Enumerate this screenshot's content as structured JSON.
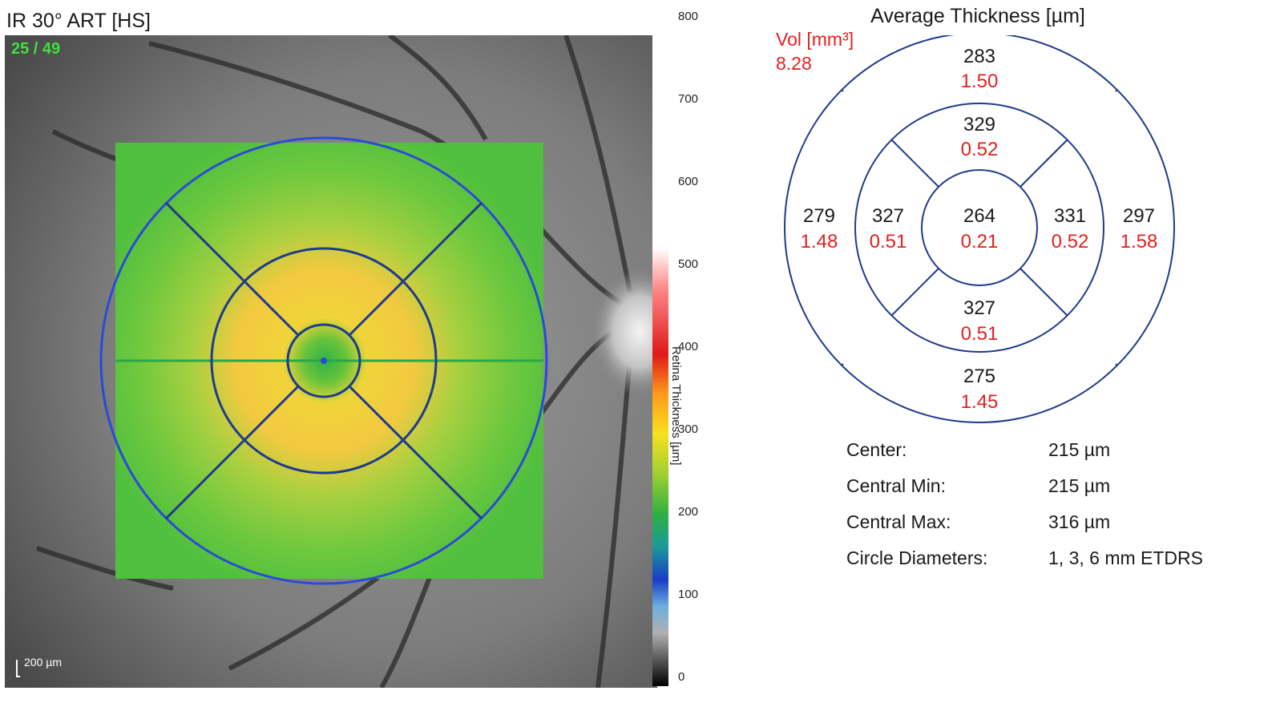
{
  "image_title": "IR 30° ART [HS]",
  "frame_counter": "25 / 49",
  "scale_bar_label": "200 µm",
  "colorbar": {
    "title": "Retina Thickness [µm]",
    "ticks": [
      "800",
      "700",
      "600",
      "500",
      "400",
      "300",
      "200",
      "100",
      "0"
    ]
  },
  "chart_title": "Average Thickness [µm]",
  "volume": {
    "label": "Vol [mm³]",
    "value": "8.28"
  },
  "sectors": [
    {
      "name": "superior-outer",
      "thickness": "283",
      "volume": "1.50"
    },
    {
      "name": "superior-inner",
      "thickness": "329",
      "volume": "0.52"
    },
    {
      "name": "temporal-outer",
      "thickness": "279",
      "volume": "1.48"
    },
    {
      "name": "temporal-inner",
      "thickness": "327",
      "volume": "0.51"
    },
    {
      "name": "center",
      "thickness": "264",
      "volume": "0.21"
    },
    {
      "name": "nasal-inner",
      "thickness": "331",
      "volume": "0.52"
    },
    {
      "name": "nasal-outer",
      "thickness": "297",
      "volume": "1.58"
    },
    {
      "name": "inferior-inner",
      "thickness": "327",
      "volume": "0.51"
    },
    {
      "name": "inferior-outer",
      "thickness": "275",
      "volume": "1.45"
    }
  ],
  "stats": [
    {
      "label": "Center:",
      "value": "215 µm"
    },
    {
      "label": "Central Min:",
      "value": "215 µm"
    },
    {
      "label": "Central Max:",
      "value": "316 µm"
    },
    {
      "label": "Circle Diameters:",
      "value": "1, 3, 6 mm ETDRS"
    }
  ],
  "colors": {
    "thickness_text": "#1a1a1a",
    "volume_text": "#e32020",
    "grid_lines": "#1f3b8c",
    "overlay_ring": "#2a4bd8"
  }
}
